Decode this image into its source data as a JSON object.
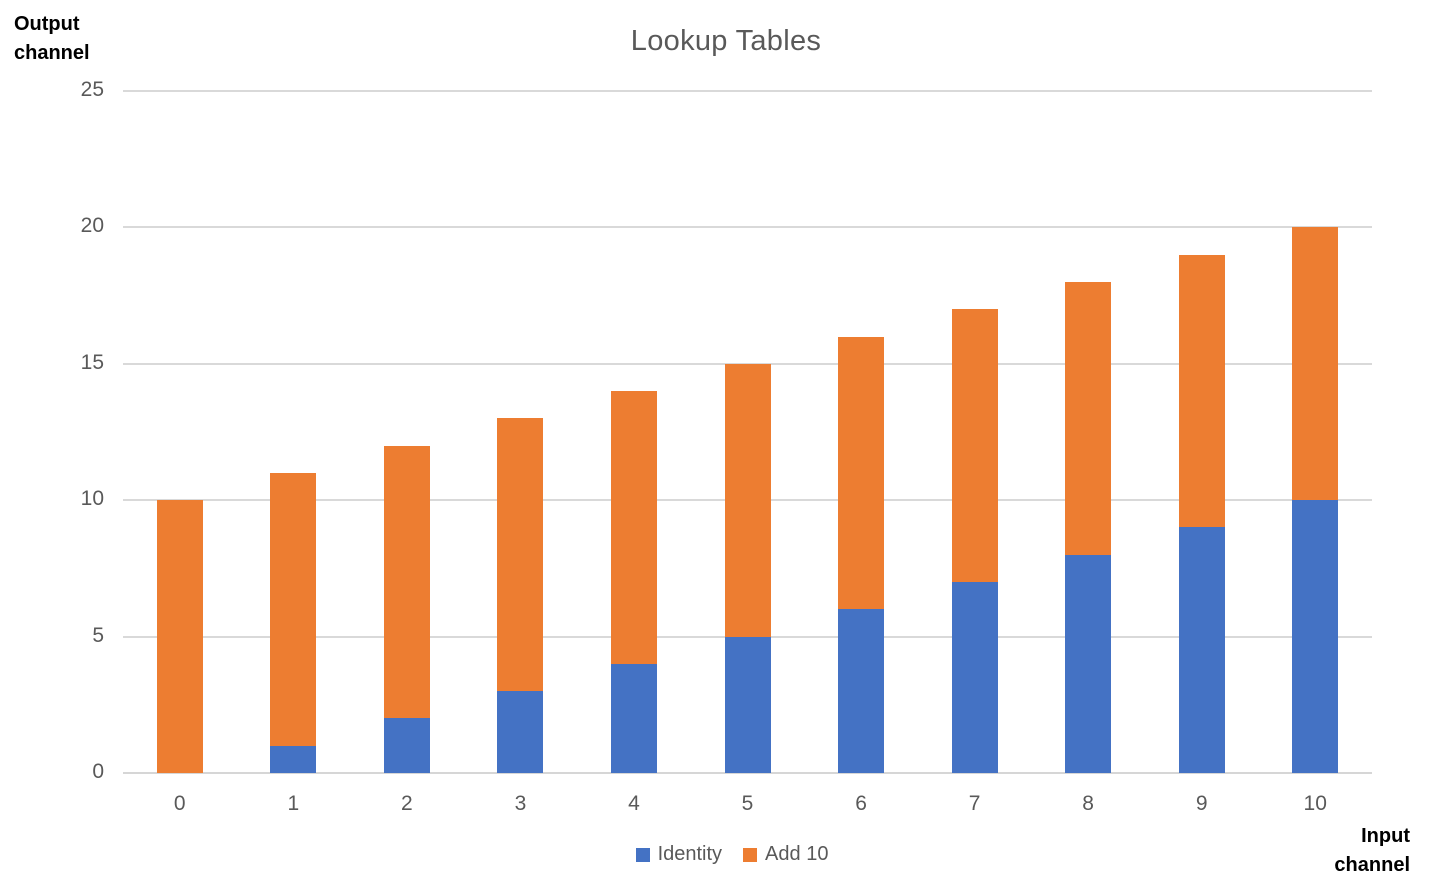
{
  "chart_data": {
    "type": "bar",
    "stacked": true,
    "title": "Lookup Tables",
    "xlabel": "Input channel",
    "ylabel": "Output channel",
    "categories": [
      "0",
      "1",
      "2",
      "3",
      "4",
      "5",
      "6",
      "7",
      "8",
      "9",
      "10"
    ],
    "series": [
      {
        "name": "Identity",
        "color": "#4472C4",
        "values": [
          0,
          1,
          2,
          3,
          4,
          5,
          6,
          7,
          8,
          9,
          10
        ]
      },
      {
        "name": "Add 10",
        "color": "#ED7D31",
        "values": [
          10,
          10,
          10,
          10,
          10,
          10,
          10,
          10,
          10,
          10,
          10
        ]
      }
    ],
    "ylim": [
      0,
      25
    ],
    "ytick_step": 5,
    "yticks": [
      0,
      5,
      10,
      15,
      20,
      25
    ],
    "grid": true,
    "legend_position": "bottom",
    "colors": {
      "title_text": "#595959",
      "tick_text": "#595959",
      "axis_title_text": "#000000",
      "gridline": "#D9D9D9",
      "background": "#FFFFFF"
    }
  }
}
